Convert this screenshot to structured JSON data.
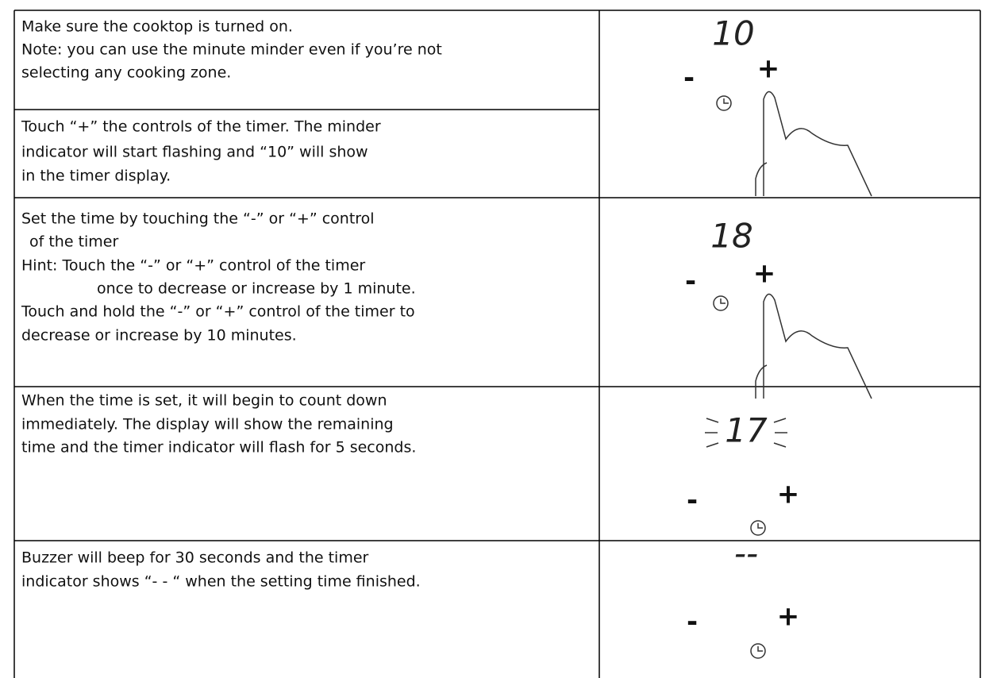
{
  "rows": [
    {
      "lines": [
        "Make sure the cooktop is turned on.",
        "Note: you can use the minute minder even if you’re not",
        "selecting any cooking zone."
      ]
    },
    {
      "lines": [
        "Touch “+” the controls of the timer. The minder",
        "indicator will start flashing and “10” will show",
        "in the timer display."
      ]
    },
    {
      "lines": [
        "Set the time by touching the “-” or “+” control",
        "of the timer",
        "Hint: Touch the “-” or “+” control of the timer",
        "once to decrease or increase by 1 minute.",
        "Touch and hold the “-” or “+” control of the timer to",
        "decrease or increase by 10 minutes."
      ]
    },
    {
      "lines": [
        "When the time is set, it will begin to count down",
        "immediately. The display will show the remaining",
        "time and the timer indicator will flash for 5 seconds."
      ]
    },
    {
      "lines": [
        "Buzzer will beep for 30 seconds and the timer",
        "indicator shows “- - “ when the setting time finished."
      ]
    }
  ],
  "illustrations": [
    {
      "display": "10",
      "minus": "-",
      "plus": "+"
    },
    {
      "display": "18",
      "minus": "-",
      "plus": "+"
    },
    {
      "display": "17",
      "minus": "-",
      "plus": "+"
    },
    {
      "display": "--",
      "minus": "-",
      "plus": "+"
    }
  ]
}
